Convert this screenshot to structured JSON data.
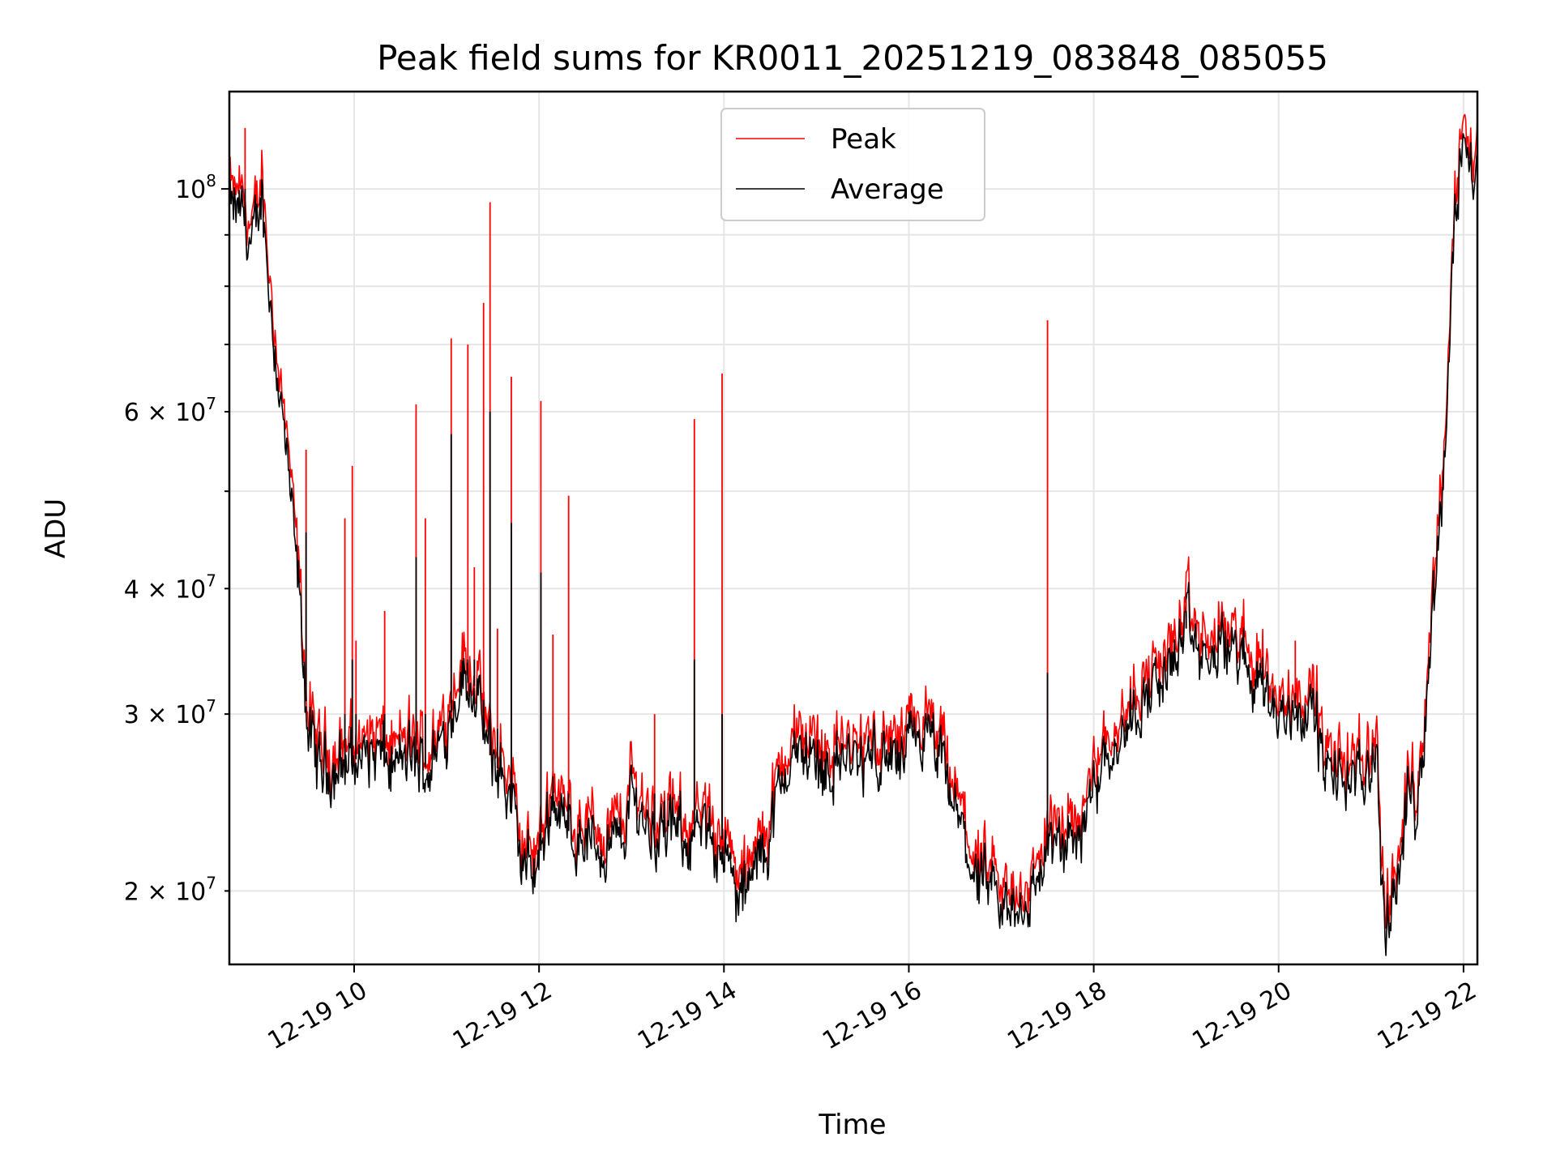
{
  "chart_data": {
    "type": "line",
    "title": "Peak field sums for KR0011_20251219_083848_085055",
    "xlabel": "Time",
    "ylabel": "ADU",
    "y_scale": "log",
    "xlim_hours": [
      8.65,
      22.15
    ],
    "ylim": [
      16900000,
      125000000
    ],
    "x_ticks": [
      {
        "hour": 10,
        "label": "12-19 10"
      },
      {
        "hour": 12,
        "label": "12-19 12"
      },
      {
        "hour": 14,
        "label": "12-19 14"
      },
      {
        "hour": 16,
        "label": "12-19 16"
      },
      {
        "hour": 18,
        "label": "12-19 18"
      },
      {
        "hour": 20,
        "label": "12-19 20"
      },
      {
        "hour": 22,
        "label": "12-19 22"
      }
    ],
    "y_major_ticks": [
      {
        "value": 100000000,
        "mant": "10",
        "exp": "8"
      }
    ],
    "y_minor_ticks": [
      {
        "value": 20000000,
        "mant": "2 × 10",
        "exp": "7"
      },
      {
        "value": 30000000,
        "mant": "3 × 10",
        "exp": "7"
      },
      {
        "value": 40000000,
        "mant": "4 × 10",
        "exp": "7"
      },
      {
        "value": 60000000,
        "mant": "6 × 10",
        "exp": "7"
      }
    ],
    "y_unlabeled_minor": [
      50000000,
      70000000,
      80000000,
      90000000
    ],
    "legend": {
      "position": "top-center",
      "entries": [
        {
          "name": "Peak",
          "color": "#ff0000"
        },
        {
          "name": "Average",
          "color": "#000000"
        }
      ]
    },
    "baseline": {
      "hours": [
        8.65,
        8.8,
        8.9,
        9.0,
        9.1,
        9.2,
        9.3,
        9.4,
        9.45,
        9.5,
        9.6,
        9.8,
        10.0,
        10.2,
        10.4,
        10.6,
        10.8,
        11.0,
        11.15,
        11.3,
        11.45,
        11.6,
        11.7,
        11.8,
        11.9,
        12.0,
        12.15,
        12.3,
        12.5,
        12.7,
        12.9,
        13.0,
        13.2,
        13.5,
        13.8,
        14.0,
        14.1,
        14.2,
        14.3,
        14.5,
        14.7,
        14.9,
        15.1,
        15.3,
        15.5,
        15.7,
        15.9,
        16.1,
        16.3,
        16.5,
        16.7,
        16.9,
        17.1,
        17.3,
        17.5,
        17.7,
        17.9,
        18.1,
        18.3,
        18.5,
        18.7,
        18.9,
        19.0,
        19.2,
        19.4,
        19.6,
        19.7,
        19.8,
        20.0,
        20.2,
        20.4,
        20.5,
        20.7,
        20.9,
        21.05,
        21.15,
        21.3,
        21.4,
        21.5,
        21.6,
        21.7,
        21.8,
        21.85,
        21.9,
        22.0,
        22.1,
        22.15
      ],
      "values": [
        95000000,
        94000000,
        86000000,
        100000000,
        76000000,
        62000000,
        50000000,
        40000000,
        34000000,
        29000000,
        26500000,
        26500000,
        27000000,
        27500000,
        26500000,
        27000000,
        26500000,
        29000000,
        32500000,
        32000000,
        27500000,
        26000000,
        24500000,
        21500000,
        21000000,
        21500000,
        25000000,
        23000000,
        22500000,
        22000000,
        22500000,
        25000000,
        23000000,
        22800000,
        22500000,
        22500000,
        20000000,
        19500000,
        20500000,
        23000000,
        27000000,
        27500000,
        26500000,
        27000000,
        26500000,
        27500000,
        26500000,
        28500000,
        27500000,
        24000000,
        21000000,
        19500000,
        19000000,
        19500000,
        22000000,
        22000000,
        23500000,
        27500000,
        28500000,
        31000000,
        32000000,
        34500000,
        36500000,
        33500000,
        35000000,
        34500000,
        32000000,
        33000000,
        29500000,
        30500000,
        30000000,
        26000000,
        26000000,
        25500000,
        28000000,
        18000000,
        21000000,
        25000000,
        24500000,
        31000000,
        42000000,
        55000000,
        72000000,
        90000000,
        118000000,
        100000000,
        105000000
      ]
    },
    "spikes": [
      {
        "hour": 8.82,
        "peak": 115000000,
        "avg": 100000000
      },
      {
        "hour": 9.48,
        "peak": 55000000,
        "avg": 45500000
      },
      {
        "hour": 9.9,
        "peak": 47000000,
        "avg": 30000000
      },
      {
        "hour": 9.98,
        "peak": 53000000,
        "avg": 34000000
      },
      {
        "hour": 10.02,
        "peak": 35500000,
        "avg": 30000000
      },
      {
        "hour": 10.33,
        "peak": 38000000,
        "avg": 30000000
      },
      {
        "hour": 10.67,
        "peak": 61000000,
        "avg": 43000000
      },
      {
        "hour": 10.77,
        "peak": 47000000,
        "avg": 30000000
      },
      {
        "hour": 11.05,
        "peak": 71000000,
        "avg": 57000000
      },
      {
        "hour": 11.23,
        "peak": 70000000,
        "avg": 34000000
      },
      {
        "hour": 11.3,
        "peak": 42000000,
        "avg": 34000000
      },
      {
        "hour": 11.4,
        "peak": 77000000,
        "avg": 31000000
      },
      {
        "hour": 11.47,
        "peak": 97000000,
        "avg": 60000000
      },
      {
        "hour": 11.55,
        "peak": 36500000,
        "avg": 29000000
      },
      {
        "hour": 11.7,
        "peak": 65000000,
        "avg": 46500000
      },
      {
        "hour": 12.02,
        "peak": 61500000,
        "avg": 41500000
      },
      {
        "hour": 12.15,
        "peak": 36000000,
        "avg": 26000000
      },
      {
        "hour": 12.32,
        "peak": 49500000,
        "avg": 25000000
      },
      {
        "hour": 13.25,
        "peak": 30000000,
        "avg": 25000000
      },
      {
        "hour": 13.68,
        "peak": 59000000,
        "avg": 34000000
      },
      {
        "hour": 13.98,
        "peak": 65500000,
        "avg": 30000000
      },
      {
        "hour": 17.5,
        "peak": 74000000,
        "avg": 33000000
      },
      {
        "hour": 19.0,
        "peak": 39000000,
        "avg": 38000000
      },
      {
        "hour": 20.18,
        "peak": 35500000,
        "avg": 31500000
      }
    ]
  }
}
